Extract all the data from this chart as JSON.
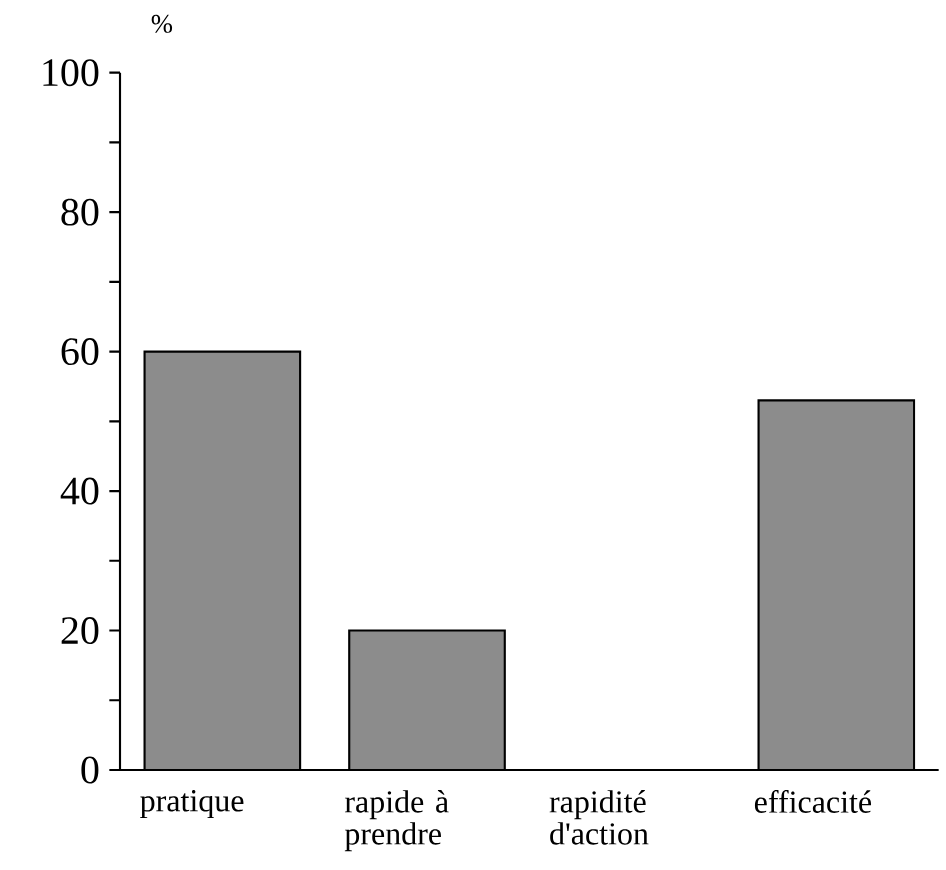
{
  "chart_data": {
    "type": "bar",
    "ylabel": "%",
    "categories": [
      "pratique",
      "rapide à prendre",
      "rapidité d'action",
      "efficacité"
    ],
    "values": [
      60,
      20,
      0,
      53
    ],
    "color": "#8c8c8c",
    "ylim": [
      0,
      100
    ],
    "yticks": [
      0,
      {
        "value": 10,
        "label": null
      },
      20,
      {
        "value": 30,
        "label": null
      },
      40,
      {
        "value": 50,
        "label": null
      },
      60,
      {
        "value": 70,
        "label": null
      },
      80,
      {
        "value": 90,
        "label": null
      },
      100
    ]
  }
}
